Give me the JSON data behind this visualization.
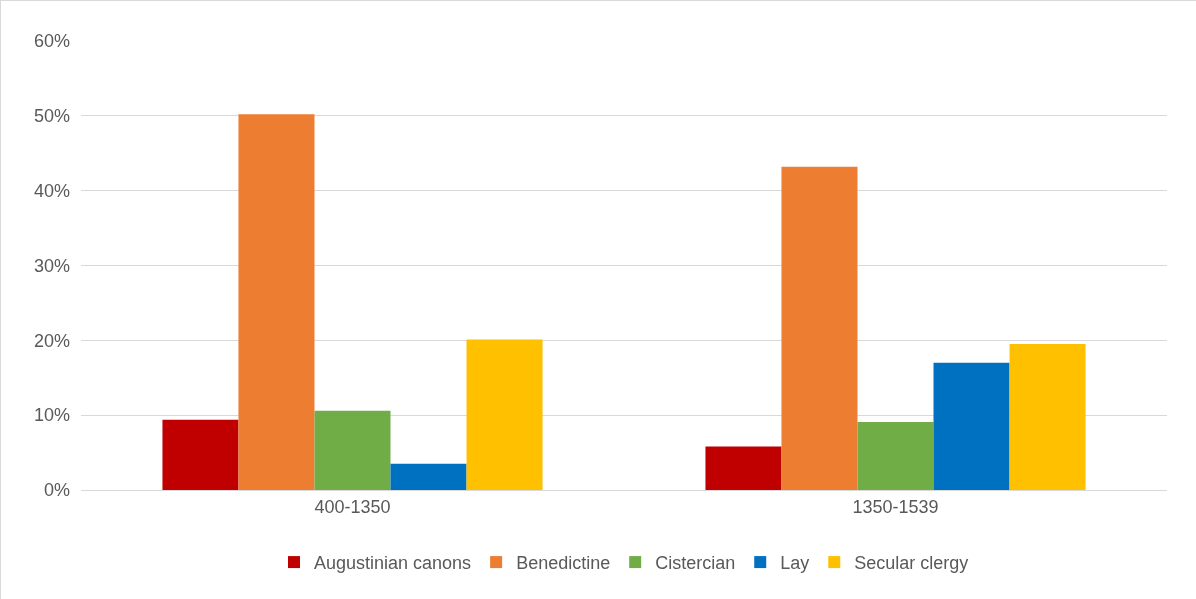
{
  "chart_data": {
    "type": "bar",
    "categories": [
      "400-1350",
      "1350-1539"
    ],
    "series": [
      {
        "name": "Augustinian canons",
        "color": "#c00000",
        "values": [
          9.4,
          5.8
        ]
      },
      {
        "name": "Benedictine",
        "color": "#ed7d31",
        "values": [
          50.2,
          43.2
        ]
      },
      {
        "name": "Cistercian",
        "color": "#70ad47",
        "values": [
          10.6,
          9.1
        ]
      },
      {
        "name": "Lay",
        "color": "#0070c0",
        "values": [
          3.5,
          17.0
        ]
      },
      {
        "name": "Secular clergy",
        "color": "#ffc000",
        "values": [
          20.1,
          19.5
        ]
      }
    ],
    "ylim": [
      0,
      60
    ],
    "yticks": [
      {
        "value": 0,
        "label": "0%"
      },
      {
        "value": 10,
        "label": "10%"
      },
      {
        "value": 20,
        "label": "20%"
      },
      {
        "value": 30,
        "label": "30%"
      },
      {
        "value": 40,
        "label": "40%"
      },
      {
        "value": 50,
        "label": "50%"
      },
      {
        "value": 60,
        "label": "60%"
      }
    ],
    "grid": "y",
    "legend": "bottom"
  }
}
